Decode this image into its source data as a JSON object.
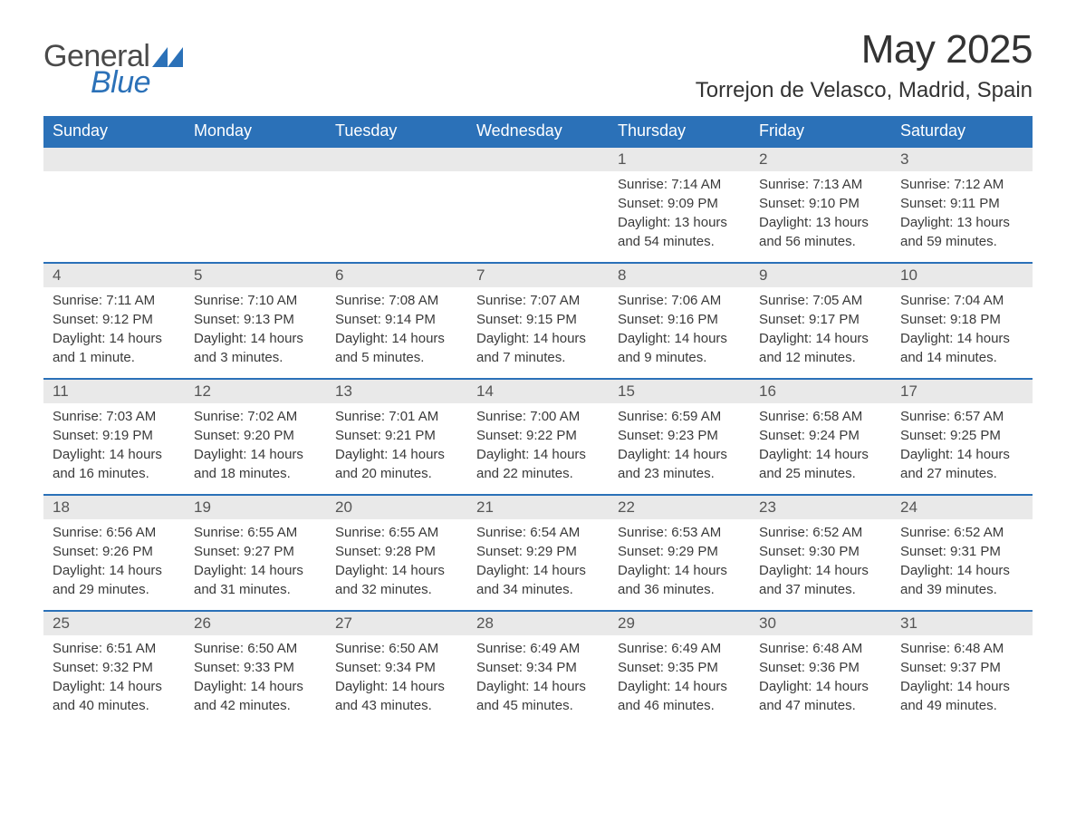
{
  "logo": {
    "word1": "General",
    "word2": "Blue",
    "triangle_color": "#2b71b8"
  },
  "title": "May 2025",
  "location": "Torrejon de Velasco, Madrid, Spain",
  "colors": {
    "header_bg": "#2b71b8",
    "header_text": "#ffffff",
    "daynum_bg": "#e9e9e9",
    "body_text": "#3a3a3a",
    "page_bg": "#ffffff"
  },
  "weekdays": [
    "Sunday",
    "Monday",
    "Tuesday",
    "Wednesday",
    "Thursday",
    "Friday",
    "Saturday"
  ],
  "first_weekday_index": 4,
  "days": [
    {
      "n": 1,
      "sunrise": "7:14 AM",
      "sunset": "9:09 PM",
      "daylight": "13 hours and 54 minutes."
    },
    {
      "n": 2,
      "sunrise": "7:13 AM",
      "sunset": "9:10 PM",
      "daylight": "13 hours and 56 minutes."
    },
    {
      "n": 3,
      "sunrise": "7:12 AM",
      "sunset": "9:11 PM",
      "daylight": "13 hours and 59 minutes."
    },
    {
      "n": 4,
      "sunrise": "7:11 AM",
      "sunset": "9:12 PM",
      "daylight": "14 hours and 1 minute."
    },
    {
      "n": 5,
      "sunrise": "7:10 AM",
      "sunset": "9:13 PM",
      "daylight": "14 hours and 3 minutes."
    },
    {
      "n": 6,
      "sunrise": "7:08 AM",
      "sunset": "9:14 PM",
      "daylight": "14 hours and 5 minutes."
    },
    {
      "n": 7,
      "sunrise": "7:07 AM",
      "sunset": "9:15 PM",
      "daylight": "14 hours and 7 minutes."
    },
    {
      "n": 8,
      "sunrise": "7:06 AM",
      "sunset": "9:16 PM",
      "daylight": "14 hours and 9 minutes."
    },
    {
      "n": 9,
      "sunrise": "7:05 AM",
      "sunset": "9:17 PM",
      "daylight": "14 hours and 12 minutes."
    },
    {
      "n": 10,
      "sunrise": "7:04 AM",
      "sunset": "9:18 PM",
      "daylight": "14 hours and 14 minutes."
    },
    {
      "n": 11,
      "sunrise": "7:03 AM",
      "sunset": "9:19 PM",
      "daylight": "14 hours and 16 minutes."
    },
    {
      "n": 12,
      "sunrise": "7:02 AM",
      "sunset": "9:20 PM",
      "daylight": "14 hours and 18 minutes."
    },
    {
      "n": 13,
      "sunrise": "7:01 AM",
      "sunset": "9:21 PM",
      "daylight": "14 hours and 20 minutes."
    },
    {
      "n": 14,
      "sunrise": "7:00 AM",
      "sunset": "9:22 PM",
      "daylight": "14 hours and 22 minutes."
    },
    {
      "n": 15,
      "sunrise": "6:59 AM",
      "sunset": "9:23 PM",
      "daylight": "14 hours and 23 minutes."
    },
    {
      "n": 16,
      "sunrise": "6:58 AM",
      "sunset": "9:24 PM",
      "daylight": "14 hours and 25 minutes."
    },
    {
      "n": 17,
      "sunrise": "6:57 AM",
      "sunset": "9:25 PM",
      "daylight": "14 hours and 27 minutes."
    },
    {
      "n": 18,
      "sunrise": "6:56 AM",
      "sunset": "9:26 PM",
      "daylight": "14 hours and 29 minutes."
    },
    {
      "n": 19,
      "sunrise": "6:55 AM",
      "sunset": "9:27 PM",
      "daylight": "14 hours and 31 minutes."
    },
    {
      "n": 20,
      "sunrise": "6:55 AM",
      "sunset": "9:28 PM",
      "daylight": "14 hours and 32 minutes."
    },
    {
      "n": 21,
      "sunrise": "6:54 AM",
      "sunset": "9:29 PM",
      "daylight": "14 hours and 34 minutes."
    },
    {
      "n": 22,
      "sunrise": "6:53 AM",
      "sunset": "9:29 PM",
      "daylight": "14 hours and 36 minutes."
    },
    {
      "n": 23,
      "sunrise": "6:52 AM",
      "sunset": "9:30 PM",
      "daylight": "14 hours and 37 minutes."
    },
    {
      "n": 24,
      "sunrise": "6:52 AM",
      "sunset": "9:31 PM",
      "daylight": "14 hours and 39 minutes."
    },
    {
      "n": 25,
      "sunrise": "6:51 AM",
      "sunset": "9:32 PM",
      "daylight": "14 hours and 40 minutes."
    },
    {
      "n": 26,
      "sunrise": "6:50 AM",
      "sunset": "9:33 PM",
      "daylight": "14 hours and 42 minutes."
    },
    {
      "n": 27,
      "sunrise": "6:50 AM",
      "sunset": "9:34 PM",
      "daylight": "14 hours and 43 minutes."
    },
    {
      "n": 28,
      "sunrise": "6:49 AM",
      "sunset": "9:34 PM",
      "daylight": "14 hours and 45 minutes."
    },
    {
      "n": 29,
      "sunrise": "6:49 AM",
      "sunset": "9:35 PM",
      "daylight": "14 hours and 46 minutes."
    },
    {
      "n": 30,
      "sunrise": "6:48 AM",
      "sunset": "9:36 PM",
      "daylight": "14 hours and 47 minutes."
    },
    {
      "n": 31,
      "sunrise": "6:48 AM",
      "sunset": "9:37 PM",
      "daylight": "14 hours and 49 minutes."
    }
  ],
  "labels": {
    "sunrise": "Sunrise:",
    "sunset": "Sunset:",
    "daylight": "Daylight:"
  }
}
